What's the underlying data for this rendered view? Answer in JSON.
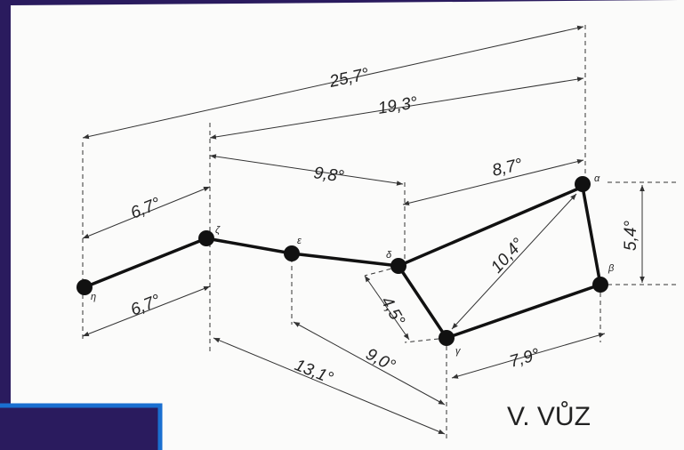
{
  "title": "V. VŮZ",
  "stars": [
    {
      "label": "η"
    },
    {
      "label": "ζ"
    },
    {
      "label": "ε"
    },
    {
      "label": "δ"
    },
    {
      "label": "γ"
    },
    {
      "label": "β"
    },
    {
      "label": "α"
    }
  ],
  "distances": [
    {
      "label": "25,7°"
    },
    {
      "label": "19,3°"
    },
    {
      "label": "9,8°"
    },
    {
      "label": "8,7°"
    },
    {
      "label": "6,7°"
    },
    {
      "label": "6,7°"
    },
    {
      "label": "10,4°"
    },
    {
      "label": "5,4°"
    },
    {
      "label": "4,5°"
    },
    {
      "label": "7,9°"
    },
    {
      "label": "9,0°"
    },
    {
      "label": "13,1°"
    }
  ]
}
